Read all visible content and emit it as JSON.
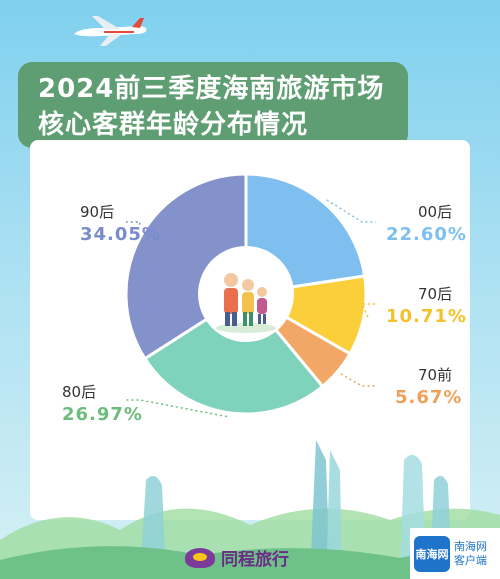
{
  "title": {
    "line1": "2024前三季度海南旅游市场",
    "line2": "核心客群年龄分布情况"
  },
  "chart_data": {
    "type": "pie",
    "categories": [
      "00后",
      "70后",
      "70前",
      "80后",
      "90后"
    ],
    "values": [
      22.6,
      10.71,
      5.67,
      26.97,
      34.05
    ],
    "value_labels": [
      "22.60%",
      "10.71%",
      "5.67%",
      "26.97%",
      "34.05%"
    ],
    "colors": [
      "#7ebff0",
      "#fbcf3a",
      "#f2a766",
      "#7fd3bc",
      "#8492cc"
    ],
    "label_colors": [
      "#7ebff0",
      "#f5c12b",
      "#f0a159",
      "#6cbd7c",
      "#7b8ccc"
    ]
  },
  "brand": {
    "name": "同程旅行"
  },
  "badge": {
    "mark": "南海网",
    "line1": "南海网",
    "line2": "客户端"
  }
}
